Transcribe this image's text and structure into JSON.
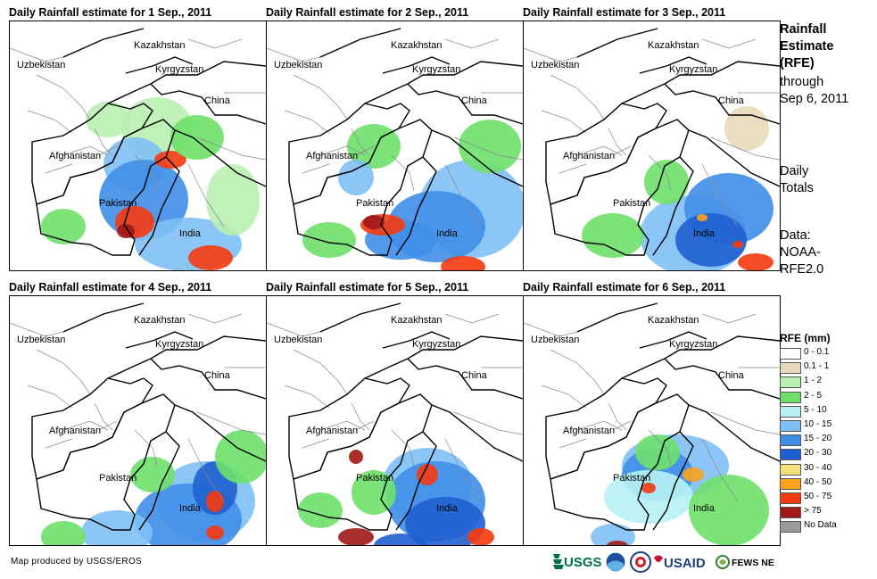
{
  "panels": [
    {
      "title": "Daily Rainfall estimate for 1 Sep., 2011"
    },
    {
      "title": "Daily Rainfall estimate for 2 Sep., 2011"
    },
    {
      "title": "Daily Rainfall estimate for 3 Sep., 2011"
    },
    {
      "title": "Daily Rainfall estimate for 4 Sep., 2011"
    },
    {
      "title": "Daily Rainfall estimate for 5 Sep., 2011"
    },
    {
      "title": "Daily Rainfall estimate for 6 Sep., 2011"
    }
  ],
  "map_labels": {
    "kazakhstan": "Kazakhstan",
    "uzbekistan": "Uzbekistan",
    "kyrgyzstan": "Kyrgyzstan",
    "china": "China",
    "afghanistan": "Afghanistan",
    "pakistan": "Pakistan",
    "india": "India"
  },
  "side": {
    "title_line1": "Rainfall",
    "title_line2": "Estimate",
    "title_line3": "(RFE)",
    "through_line1": "through",
    "through_line2": "Sep 6, 2011",
    "totals_line1": "Daily",
    "totals_line2": "Totals",
    "data_line1": "Data:",
    "data_line2": "NOAA-",
    "data_line3": "RFE2.0"
  },
  "legend": {
    "title": "RFE (mm)",
    "items": [
      {
        "label": "0 - 0.1",
        "color": "#ffffff"
      },
      {
        "label": "0.1 - 1",
        "color": "#e9d9b9"
      },
      {
        "label": "1 - 2",
        "color": "#b8f0b0"
      },
      {
        "label": "2 - 5",
        "color": "#6ee06a"
      },
      {
        "label": "5 - 10",
        "color": "#b6f2f4"
      },
      {
        "label": "10 - 15",
        "color": "#7ec0f6"
      },
      {
        "label": "15 - 20",
        "color": "#3f8ee8"
      },
      {
        "label": "20 - 30",
        "color": "#1f5fd0"
      },
      {
        "label": "30 - 40",
        "color": "#f6e07a"
      },
      {
        "label": "40 - 50",
        "color": "#fba21c"
      },
      {
        "label": "50 - 75",
        "color": "#f53a0f"
      },
      {
        "label": "> 75",
        "color": "#a01818"
      },
      {
        "label": "No Data",
        "color": "#999999"
      }
    ]
  },
  "footer": {
    "credit": "Map produced by USGS/EROS",
    "logo_usgs": "USGS",
    "logo_usaid": "USAID",
    "logo_fews": "FEWS NET"
  }
}
